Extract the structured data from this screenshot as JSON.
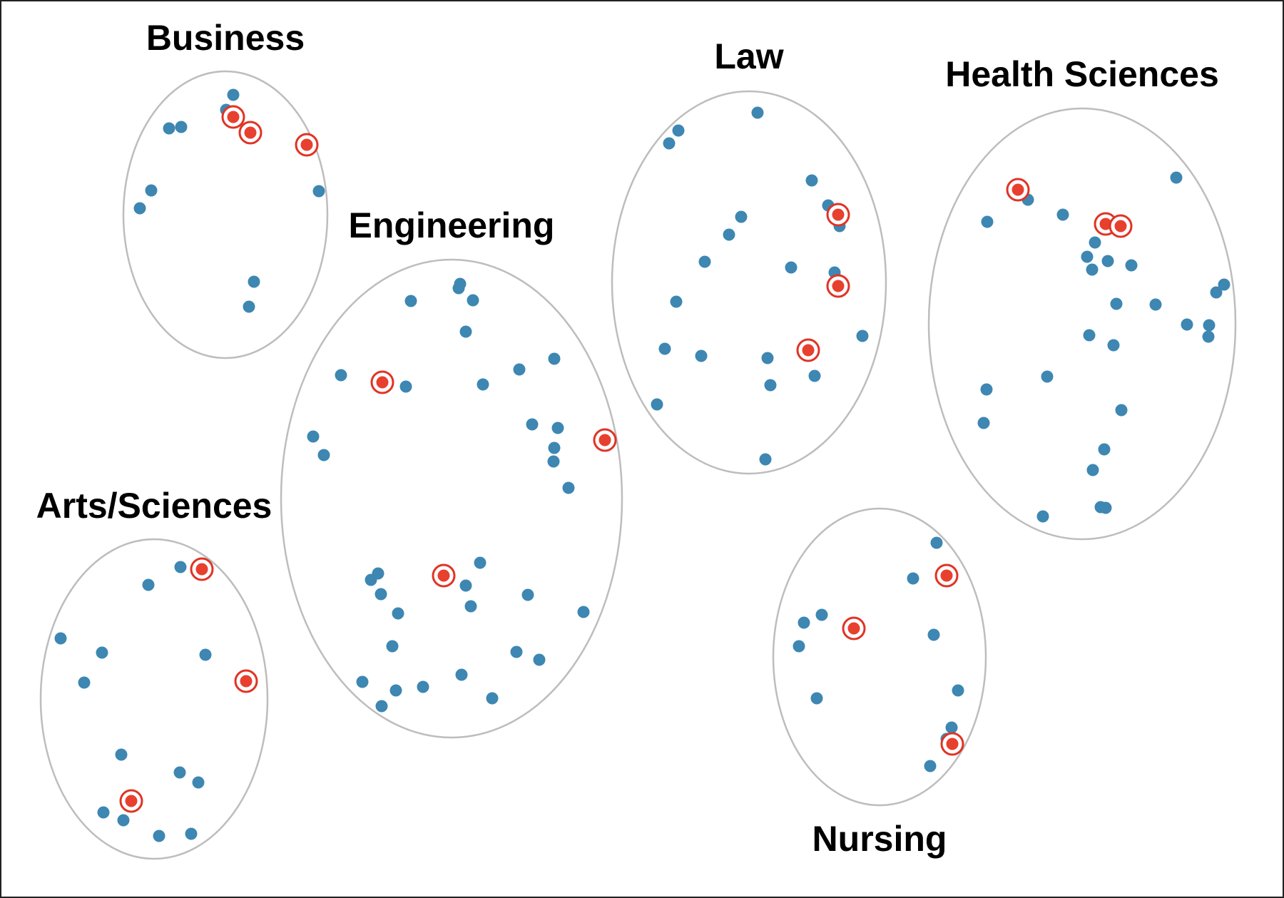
{
  "colors": {
    "point": "#3d87b2",
    "selected_point": "#e8402f",
    "selected_ring": "#e03325",
    "ellipse_stroke": "#bdbdbd"
  },
  "clusters": [
    {
      "name": "Business",
      "points": [
        [
          327,
          133
        ],
        [
          317,
          154
        ],
        [
          254,
          178
        ],
        [
          237,
          180
        ],
        [
          212,
          267
        ],
        [
          196,
          292
        ],
        [
          447,
          268
        ],
        [
          356,
          395
        ],
        [
          349,
          430
        ],
        [
          431,
          208
        ]
      ],
      "selected": [
        [
          327,
          164
        ],
        [
          351,
          186
        ],
        [
          430,
          203
        ]
      ]
    },
    {
      "name": "Engineering",
      "points": [
        [
          645,
          398
        ],
        [
          643,
          404
        ],
        [
          663,
          421
        ],
        [
          576,
          422
        ],
        [
          653,
          465
        ],
        [
          478,
          526
        ],
        [
          569,
          542
        ],
        [
          677,
          539
        ],
        [
          728,
          518
        ],
        [
          777,
          503
        ],
        [
          746,
          595
        ],
        [
          782,
          600
        ],
        [
          777,
          628
        ],
        [
          776,
          647
        ],
        [
          797,
          684
        ],
        [
          439,
          612
        ],
        [
          454,
          638
        ],
        [
          530,
          804
        ],
        [
          520,
          813
        ],
        [
          534,
          833
        ],
        [
          558,
          860
        ],
        [
          673,
          789
        ],
        [
          653,
          821
        ],
        [
          660,
          850
        ],
        [
          740,
          834
        ],
        [
          818,
          858
        ],
        [
          550,
          906
        ],
        [
          724,
          914
        ],
        [
          756,
          925
        ],
        [
          508,
          956
        ],
        [
          555,
          968
        ],
        [
          593,
          963
        ],
        [
          647,
          946
        ],
        [
          690,
          979
        ],
        [
          535,
          990
        ]
      ],
      "selected": [
        [
          536,
          536
        ],
        [
          848,
          617
        ],
        [
          622,
          807
        ]
      ]
    },
    {
      "name": "Law",
      "points": [
        [
          1062,
          158
        ],
        [
          951,
          183
        ],
        [
          938,
          201
        ],
        [
          1138,
          253
        ],
        [
          1161,
          288
        ],
        [
          1177,
          317
        ],
        [
          1039,
          304
        ],
        [
          1022,
          329
        ],
        [
          988,
          367
        ],
        [
          1109,
          375
        ],
        [
          1170,
          382
        ],
        [
          948,
          423
        ],
        [
          1209,
          471
        ],
        [
          932,
          489
        ],
        [
          983,
          499
        ],
        [
          1076,
          502
        ],
        [
          1136,
          491
        ],
        [
          1142,
          527
        ],
        [
          1080,
          540
        ],
        [
          921,
          567
        ],
        [
          1073,
          644
        ]
      ],
      "selected": [
        [
          1175,
          301
        ],
        [
          1175,
          401
        ],
        [
          1133,
          491
        ]
      ]
    },
    {
      "name": "Health Sciences",
      "points": [
        [
          1441,
          280
        ],
        [
          1649,
          249
        ],
        [
          1384,
          311
        ],
        [
          1490,
          301
        ],
        [
          1535,
          340
        ],
        [
          1524,
          360
        ],
        [
          1553,
          366
        ],
        [
          1586,
          372
        ],
        [
          1531,
          378
        ],
        [
          1716,
          399
        ],
        [
          1705,
          410
        ],
        [
          1565,
          426
        ],
        [
          1620,
          427
        ],
        [
          1664,
          455
        ],
        [
          1695,
          456
        ],
        [
          1694,
          472
        ],
        [
          1527,
          470
        ],
        [
          1561,
          484
        ],
        [
          1468,
          528
        ],
        [
          1383,
          546
        ],
        [
          1572,
          575
        ],
        [
          1379,
          593
        ],
        [
          1548,
          630
        ],
        [
          1532,
          659
        ],
        [
          1543,
          711
        ],
        [
          1550,
          712
        ],
        [
          1462,
          724
        ]
      ],
      "selected": [
        [
          1427,
          266
        ],
        [
          1550,
          314
        ],
        [
          1571,
          317
        ]
      ]
    },
    {
      "name": "Arts/Sciences",
      "points": [
        [
          253,
          795
        ],
        [
          208,
          820
        ],
        [
          85,
          895
        ],
        [
          143,
          915
        ],
        [
          118,
          957
        ],
        [
          288,
          918
        ],
        [
          170,
          1058
        ],
        [
          252,
          1083
        ],
        [
          278,
          1097
        ],
        [
          145,
          1139
        ],
        [
          173,
          1150
        ],
        [
          223,
          1172
        ],
        [
          268,
          1169
        ]
      ],
      "selected": [
        [
          283,
          798
        ],
        [
          345,
          955
        ],
        [
          184,
          1123
        ]
      ]
    },
    {
      "name": "Nursing",
      "points": [
        [
          1313,
          761
        ],
        [
          1280,
          811
        ],
        [
          1127,
          873
        ],
        [
          1152,
          862
        ],
        [
          1120,
          906
        ],
        [
          1309,
          890
        ],
        [
          1145,
          979
        ],
        [
          1343,
          968
        ],
        [
          1334,
          1020
        ],
        [
          1327,
          1036
        ],
        [
          1304,
          1074
        ]
      ],
      "selected": [
        [
          1327,
          807
        ],
        [
          1197,
          881
        ],
        [
          1335,
          1043
        ]
      ]
    }
  ]
}
